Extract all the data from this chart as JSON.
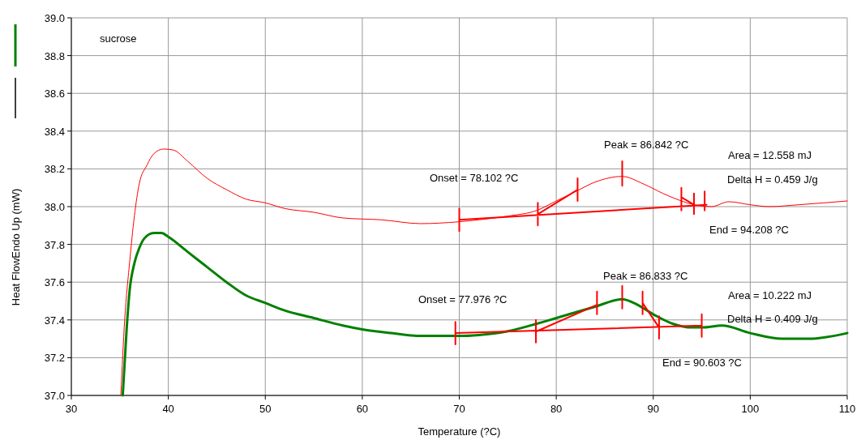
{
  "chart_data": {
    "type": "line",
    "xlabel": "Temperature (?C)",
    "ylabel": "Heat FlowEndo Up (mW)",
    "xlim": [
      30,
      110
    ],
    "xticks": [
      30,
      40,
      50,
      60,
      70,
      80,
      90,
      100,
      110
    ],
    "ylim": [
      37.0,
      39.0
    ],
    "yticks": [
      {
        "value": 37.0,
        "label": "37.0"
      },
      {
        "value": 37.2,
        "label": "37.2"
      },
      {
        "value": 37.4,
        "label": "37.4"
      },
      {
        "value": 37.6,
        "label": "37.6"
      },
      {
        "value": 37.8,
        "label": "37.8"
      },
      {
        "value": 38.0,
        "label": "38.0"
      },
      {
        "value": 38.2,
        "label": "38.2"
      },
      {
        "value": 38.4,
        "label": "38.4"
      },
      {
        "value": 38.6,
        "label": "38.6"
      },
      {
        "value": 38.8,
        "label": "38.8"
      },
      {
        "value": 39.0,
        "label": "39.0"
      }
    ],
    "grid": true,
    "series": [
      {
        "color": "#ff0000",
        "x": [
          35.1,
          35.5,
          36,
          36.5,
          37,
          37.8,
          38.5,
          39.5,
          40.5,
          42,
          44,
          46,
          48,
          50,
          52,
          55,
          58,
          62,
          66,
          70,
          72,
          75,
          78,
          80,
          82,
          84,
          86.8,
          89,
          91,
          92.9,
          94.2,
          96,
          97.8,
          100,
          102,
          105,
          110
        ],
        "values": [
          37.0,
          37.4,
          37.7,
          37.95,
          38.12,
          38.22,
          38.28,
          38.305,
          38.3,
          38.24,
          38.15,
          38.09,
          38.04,
          38.02,
          37.99,
          37.97,
          37.94,
          37.93,
          37.91,
          37.92,
          37.93,
          37.95,
          37.98,
          38.03,
          38.08,
          38.13,
          38.16,
          38.12,
          38.07,
          38.03,
          38.01,
          38.0,
          38.026,
          38.01,
          38.0,
          38.01,
          38.03
        ]
      },
      {
        "color": "#008000",
        "x": [
          35.3,
          35.7,
          36,
          36.5,
          37,
          37.5,
          38.5,
          39.3,
          40,
          42,
          44,
          46,
          48,
          50,
          52,
          55,
          58,
          60,
          63,
          66,
          70,
          72,
          75,
          78,
          80,
          84,
          86.8,
          88,
          90,
          92,
          94,
          95,
          97.1,
          100,
          103.3,
          106,
          110
        ],
        "values": [
          37.0,
          37.35,
          37.55,
          37.7,
          37.78,
          37.83,
          37.86,
          37.86,
          37.84,
          37.76,
          37.68,
          37.6,
          37.53,
          37.49,
          37.45,
          37.41,
          37.37,
          37.35,
          37.33,
          37.315,
          37.315,
          37.32,
          37.34,
          37.38,
          37.41,
          37.47,
          37.51,
          37.49,
          37.43,
          37.38,
          37.36,
          37.36,
          37.37,
          37.33,
          37.3,
          37.3,
          37.33
        ]
      },
      {
        "color": "#ff0000",
        "x": [
          70,
          95.5,
          null,
          78.1,
          82.2,
          null,
          92.9,
          94.2,
          null,
          70,
          70,
          null,
          78.1,
          78.1,
          null,
          82.2,
          82.2,
          null,
          86.8,
          86.8,
          null,
          92.9,
          92.9,
          null,
          94.2,
          94.2,
          null,
          95.3,
          95.3
        ],
        "values": [
          37.93,
          38.01,
          null,
          37.96,
          38.09,
          null,
          38.05,
          38.01,
          null,
          37.87,
          37.99,
          null,
          37.9,
          38.02,
          null,
          38.03,
          38.15,
          null,
          38.11,
          38.24,
          null,
          37.98,
          38.1,
          null,
          37.96,
          38.07,
          null,
          37.98,
          38.08
        ]
      },
      {
        "color": "#ff0000",
        "x": [
          69.6,
          95,
          null,
          78,
          84.2,
          null,
          88.9,
          90.6,
          null,
          69.6,
          69.6,
          null,
          77.9,
          77.9,
          null,
          84.2,
          84.2,
          null,
          86.8,
          86.8,
          null,
          88.9,
          88.9,
          null,
          90.6,
          90.6,
          null,
          95,
          95
        ],
        "values": [
          37.33,
          37.37,
          null,
          37.34,
          37.48,
          null,
          37.49,
          37.36,
          null,
          37.27,
          37.39,
          null,
          37.28,
          37.4,
          null,
          37.43,
          37.55,
          null,
          37.46,
          37.58,
          null,
          37.43,
          37.55,
          null,
          37.3,
          37.42,
          null,
          37.31,
          37.43
        ]
      }
    ],
    "annotations": [
      "sucrose",
      "Peak = 86.842 ?C",
      "Onset = 78.102 ?C",
      "Area = 12.558 mJ",
      "Delta H = 0.459 J/g",
      "End = 94.208 ?C",
      "Peak = 86.833 ?C",
      "Onset = 77.976 ?C",
      "Area = 10.222 mJ",
      "Delta H = 0.409 J/g",
      "End = 90.603 ?C"
    ]
  }
}
